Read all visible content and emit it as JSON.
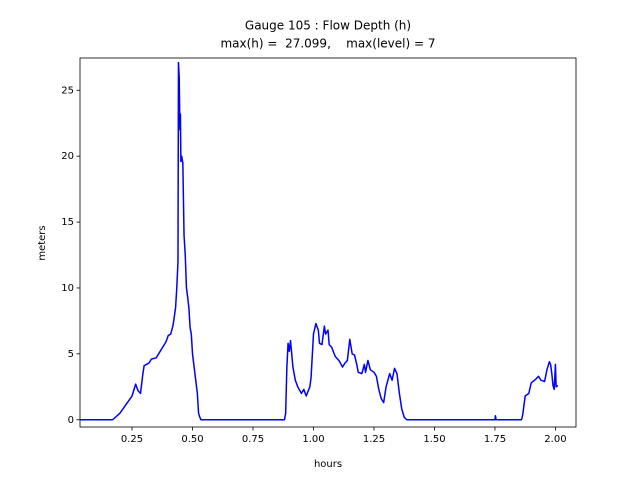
{
  "chart_data": {
    "type": "line",
    "title": "Gauge 105 : Flow Depth (h)",
    "subtitle": "max(h) =  27.099,    max(level) = 7",
    "x_label": "hours",
    "y_label": "meters",
    "xlim": [
      0.035,
      2.085
    ],
    "ylim": [
      -0.55,
      27.45
    ],
    "xticks": [
      0.25,
      {
        "value": 0.5,
        "label": "0.50"
      },
      0.75,
      {
        "value": 1,
        "label": "1.00"
      },
      1.25,
      {
        "value": 1.5,
        "label": "1.50"
      },
      1.75,
      {
        "value": 2,
        "label": "2.00"
      }
    ],
    "yticks": [
      0,
      5,
      10,
      15,
      20,
      25
    ],
    "x": [
      0.035,
      0.17,
      0.2,
      0.25,
      0.265,
      0.275,
      0.285,
      0.295,
      0.3,
      0.32,
      0.33,
      0.35,
      0.37,
      0.39,
      0.4,
      0.41,
      0.42,
      0.43,
      0.435,
      0.44,
      0.442,
      0.445,
      0.448,
      0.45,
      0.452,
      0.455,
      0.46,
      0.465,
      0.47,
      0.475,
      0.48,
      0.485,
      0.49,
      0.495,
      0.5,
      0.51,
      0.52,
      0.525,
      0.53,
      0.535,
      0.88,
      0.885,
      0.89,
      0.895,
      0.9,
      0.905,
      0.91,
      0.915,
      0.925,
      0.935,
      0.95,
      0.96,
      0.97,
      0.985,
      0.99,
      1.0,
      1.01,
      1.02,
      1.025,
      1.035,
      1.045,
      1.05,
      1.06,
      1.065,
      1.075,
      1.09,
      1.105,
      1.12,
      1.13,
      1.14,
      1.15,
      1.16,
      1.17,
      1.18,
      1.185,
      1.2,
      1.21,
      1.215,
      1.225,
      1.235,
      1.25,
      1.26,
      1.27,
      1.28,
      1.29,
      1.3,
      1.315,
      1.325,
      1.335,
      1.345,
      1.355,
      1.365,
      1.375,
      1.385,
      1.75,
      1.752,
      1.755,
      1.86,
      1.865,
      1.875,
      1.89,
      1.9,
      1.92,
      1.93,
      1.94,
      1.955,
      1.965,
      1.975,
      1.98,
      1.985,
      1.99,
      1.995,
      2.0,
      2.003,
      2.01
    ],
    "series": [
      {
        "name": "h",
        "color": "#0000ff",
        "values": [
          0,
          0,
          0.5,
          1.8,
          2.7,
          2.2,
          2.0,
          3.5,
          4.1,
          4.3,
          4.6,
          4.7,
          5.3,
          5.9,
          6.4,
          6.5,
          7.2,
          8.5,
          10,
          12,
          27.1,
          26,
          22,
          23.2,
          19.6,
          20,
          19.5,
          14,
          12.5,
          10,
          9.3,
          8.5,
          7,
          6.5,
          5,
          3.5,
          2,
          0.5,
          0.2,
          0,
          0,
          0.5,
          4,
          5.8,
          5.2,
          6,
          5,
          4,
          3,
          2.5,
          2,
          2.3,
          1.8,
          2.5,
          3.2,
          6.5,
          7.3,
          6.8,
          5.8,
          5.7,
          7.1,
          6.5,
          6.8,
          5.7,
          5.5,
          4.8,
          4.5,
          4.0,
          4.3,
          4.5,
          6.1,
          5,
          4.9,
          4.1,
          3.6,
          3.5,
          4.2,
          3.6,
          4.5,
          3.8,
          3.6,
          3.3,
          2.3,
          1.6,
          1.3,
          2.5,
          3.5,
          3.0,
          3.9,
          3.5,
          2,
          0.8,
          0.2,
          0,
          0,
          0.3,
          0,
          0,
          0.4,
          1.8,
          2,
          2.8,
          3.1,
          3.3,
          3,
          2.9,
          3.8,
          4.4,
          4.2,
          3.5,
          2.6,
          2.3,
          4.2,
          2.5,
          2.6
        ]
      }
    ]
  }
}
